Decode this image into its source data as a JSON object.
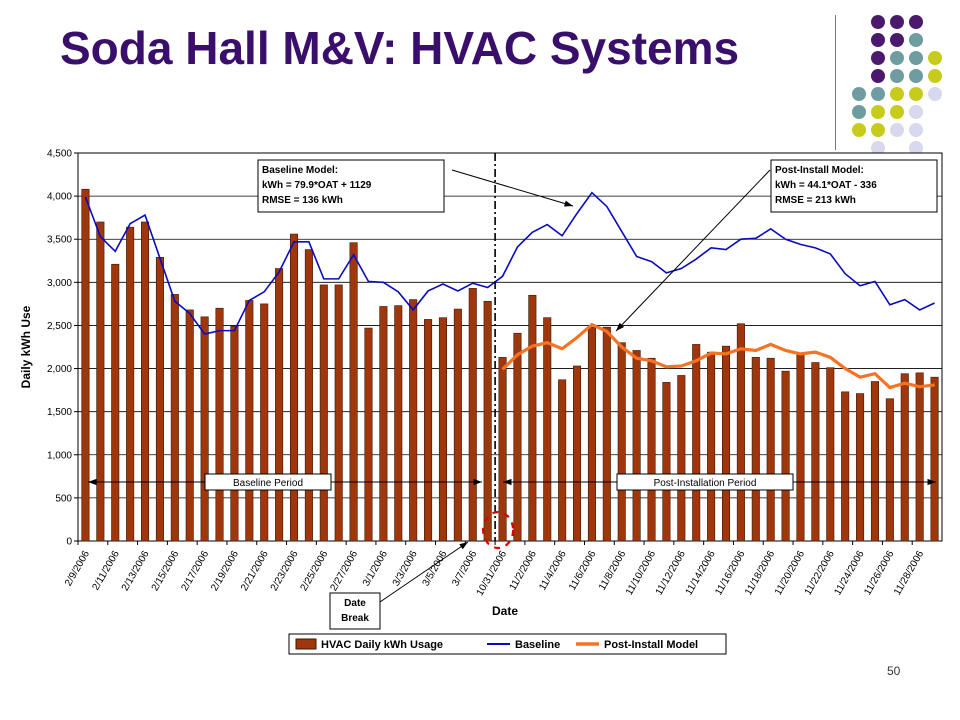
{
  "slide": {
    "title": "Soda Hall M&V:  HVAC Systems",
    "page_number": "50",
    "dot_colors": [
      "#4b1a6d",
      "#6e9ca0",
      "#c7cc1c",
      "#d8d8ee"
    ]
  },
  "chart_data": {
    "type": "bar",
    "xlabel": "Date",
    "ylabel": "Daily kWh Use",
    "ylim": [
      0,
      4500
    ],
    "yticks": [
      0,
      500,
      1000,
      1500,
      2000,
      2500,
      3000,
      3500,
      4000,
      4500
    ],
    "ytick_labels": [
      "0",
      "500",
      "1,000",
      "1,500",
      "2,000",
      "2,500",
      "3,000",
      "3,500",
      "4,000",
      "4,500"
    ],
    "grid": "horizontal",
    "legend_position": "bottom",
    "x_tick_labels": [
      "2/9/2006",
      "2/11/2006",
      "2/13/2006",
      "2/15/2006",
      "2/17/2006",
      "2/19/2006",
      "2/21/2006",
      "2/23/2006",
      "2/25/2006",
      "2/27/2006",
      "3/1/2006",
      "3/3/2006",
      "3/5/2006",
      "3/7/2006",
      "10/31/2006",
      "11/2/2006",
      "11/4/2006",
      "11/6/2006",
      "11/8/2006",
      "11/10/2006",
      "11/12/2006",
      "11/14/2006",
      "11/16/2006",
      "11/18/2006",
      "11/20/2006",
      "11/22/2006",
      "11/24/2006",
      "11/26/2006",
      "11/28/2006"
    ],
    "series": [
      {
        "name": "HVAC Daily kWh Usage",
        "type": "bar",
        "color": "#a0360c",
        "values": [
          4080,
          3700,
          3210,
          3640,
          3700,
          3290,
          2860,
          2680,
          2600,
          2700,
          2490,
          2790,
          2750,
          3160,
          3560,
          3380,
          2970,
          2970,
          3460,
          2470,
          2720,
          2730,
          2800,
          2570,
          2590,
          2690,
          2930,
          2780,
          2130,
          2410,
          2850,
          2590,
          1870,
          2030,
          2480,
          2480,
          2300,
          2210,
          2120,
          1840,
          1920,
          2280,
          2190,
          2260,
          2520,
          2130,
          2120,
          1970,
          2180,
          2070,
          2010,
          1730,
          1710,
          1850,
          1650,
          1940,
          1950,
          1900
        ]
      },
      {
        "name": "Baseline",
        "type": "line",
        "color": "#0a0abe",
        "values": [
          3990,
          3530,
          3360,
          3680,
          3780,
          3280,
          2780,
          2640,
          2400,
          2440,
          2440,
          2790,
          2890,
          3120,
          3470,
          3470,
          3040,
          3040,
          3320,
          3010,
          3000,
          2890,
          2680,
          2900,
          2980,
          2900,
          2990,
          2940,
          3070,
          3410,
          3580,
          3670,
          3540,
          3800,
          4040,
          3880,
          3590,
          3300,
          3240,
          3110,
          3160,
          3270,
          3400,
          3380,
          3500,
          3510,
          3620,
          3500,
          3440,
          3400,
          3330,
          3100,
          2960,
          3010,
          2740,
          2800,
          2680,
          2760
        ]
      },
      {
        "name": "Post-Install Model",
        "type": "line",
        "color": "#f57323",
        "start_index": 28,
        "values": [
          1990,
          2160,
          2260,
          2300,
          2230,
          2360,
          2510,
          2430,
          2250,
          2120,
          2090,
          2020,
          2030,
          2090,
          2180,
          2170,
          2230,
          2210,
          2280,
          2210,
          2170,
          2190,
          2130,
          2000,
          1900,
          1940,
          1780,
          1830,
          1790,
          1810
        ]
      }
    ],
    "annotations": {
      "baseline_model": [
        "Baseline Model:",
        "kWh = 79.9*OAT + 1129",
        "RMSE  = 136 kWh"
      ],
      "post_model": [
        "Post-Install Model:",
        "kWh = 44.1*OAT - 336",
        "RMSE = 213 kWh"
      ],
      "baseline_period": "Baseline Period",
      "post_period": "Post-Installation Period",
      "date_break": [
        "Date",
        "Break"
      ]
    }
  }
}
